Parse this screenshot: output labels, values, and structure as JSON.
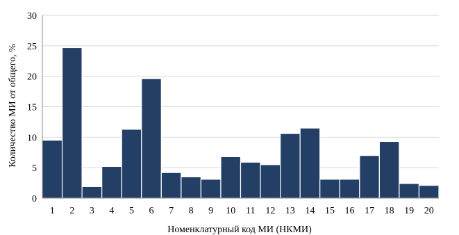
{
  "chart_data": {
    "type": "bar",
    "title": "",
    "xlabel": "Номенклатурный код МИ (НКМИ)",
    "ylabel": "Количество МИ от общего, %",
    "categories": [
      "1",
      "2",
      "3",
      "4",
      "5",
      "6",
      "7",
      "8",
      "9",
      "10",
      "11",
      "12",
      "13",
      "14",
      "15",
      "16",
      "17",
      "18",
      "19",
      "20"
    ],
    "values": [
      9.5,
      24.7,
      1.9,
      5.2,
      11.3,
      19.6,
      4.2,
      3.5,
      3.1,
      6.8,
      5.9,
      5.5,
      10.6,
      11.5,
      3.1,
      3.1,
      7.0,
      9.3,
      2.4,
      2.1
    ],
    "ylim": [
      0,
      30
    ],
    "yticks": [
      0,
      5,
      10,
      15,
      20,
      25,
      30
    ],
    "grid": true,
    "legend": "none",
    "bar_color": "#243f66"
  }
}
